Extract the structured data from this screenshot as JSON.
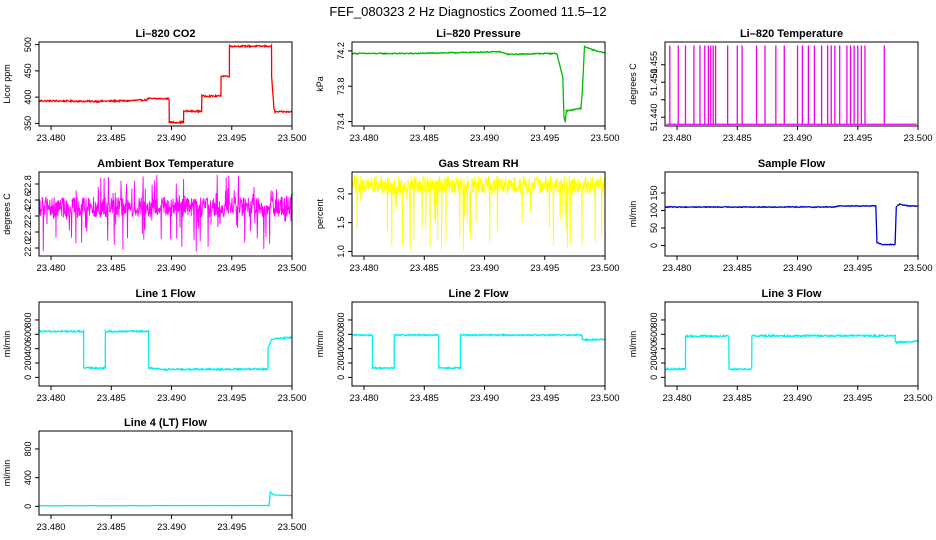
{
  "title": "FEF_080323  2 Hz Diagnostics Zoomed 11.5–12",
  "chart_data": [
    {
      "type": "line",
      "title": "Li–820 CO2",
      "xlabel": "",
      "ylabel": "Licor ppm",
      "color": "#ff0000",
      "xlim": [
        23.479,
        23.5
      ],
      "ylim": [
        345,
        505
      ],
      "xticks": [
        23.48,
        23.485,
        23.49,
        23.495,
        23.5
      ],
      "xtick_labels": [
        "23.480",
        "23.485",
        "23.490",
        "23.495",
        "23.500"
      ],
      "yticks": [
        350,
        400,
        450,
        500
      ],
      "ytick_labels": [
        "350",
        "400",
        "450",
        "500"
      ],
      "noise": 1.5,
      "x": [
        23.479,
        23.4835,
        23.4865,
        23.488,
        23.48801,
        23.4898,
        23.48981,
        23.491,
        23.49101,
        23.4925,
        23.49251,
        23.4941,
        23.49411,
        23.4948,
        23.49481,
        23.4983,
        23.49831,
        23.4985,
        23.4986,
        23.5
      ],
      "y": [
        393,
        392,
        393,
        395,
        397,
        397,
        352,
        352,
        373,
        373,
        402,
        402,
        440,
        440,
        497,
        497,
        440,
        378,
        372,
        372
      ]
    },
    {
      "type": "line",
      "title": "Li–820 Pressure",
      "xlabel": "",
      "ylabel": "kPa",
      "color": "#00bb00",
      "xlim": [
        23.479,
        23.5
      ],
      "ylim": [
        73.35,
        74.3
      ],
      "xticks": [
        23.48,
        23.485,
        23.49,
        23.495,
        23.5
      ],
      "xtick_labels": [
        "23.480",
        "23.485",
        "23.490",
        "23.495",
        "23.500"
      ],
      "yticks": [
        73.4,
        73.8,
        74.2
      ],
      "ytick_labels": [
        "73.4",
        "73.8",
        "74.2"
      ],
      "noise": 0.006,
      "x": [
        23.479,
        23.484,
        23.488,
        23.4912,
        23.492,
        23.495,
        23.496,
        23.4965,
        23.4966,
        23.4967,
        23.4968,
        23.4972,
        23.498,
        23.4981,
        23.4983,
        23.4988,
        23.4995,
        23.5
      ],
      "y": [
        74.17,
        74.17,
        74.18,
        74.19,
        74.16,
        74.17,
        74.17,
        73.9,
        73.45,
        73.4,
        73.52,
        73.53,
        73.55,
        73.7,
        74.25,
        74.22,
        74.19,
        74.18
      ]
    },
    {
      "type": "spikes",
      "title": "Li–820 Temperature",
      "xlabel": "",
      "ylabel": "degrees C",
      "color": "#ee00ee",
      "xlim": [
        23.479,
        23.5
      ],
      "ylim": [
        51.4375,
        51.4615
      ],
      "xticks": [
        23.48,
        23.485,
        23.49,
        23.495,
        23.5
      ],
      "xtick_labels": [
        "23.480",
        "23.485",
        "23.490",
        "23.495",
        "23.500"
      ],
      "yticks": [
        51.44,
        51.445,
        51.45,
        51.455
      ],
      "ytick_labels": [
        "51.440",
        "",
        "51.450",
        "51.455"
      ],
      "baseline": 51.438,
      "peak": 51.4605,
      "spikes": [
        23.4794,
        23.4801,
        23.4807,
        23.4814,
        23.4819,
        23.4823,
        23.4826,
        23.4828,
        23.483,
        23.4832,
        23.4842,
        23.485,
        23.4854,
        23.4866,
        23.4873,
        23.4882,
        23.4889,
        23.49,
        23.4904,
        23.4909,
        23.4914,
        23.492,
        23.4925,
        23.4928,
        23.4931,
        23.4935,
        23.4941,
        23.4944,
        23.4947,
        23.495,
        23.4953,
        23.4956,
        23.4972
      ]
    },
    {
      "type": "band",
      "title": "Ambient Box Temperature",
      "xlabel": "",
      "ylabel": "degrees C",
      "color": "#ff00ff",
      "xlim": [
        23.479,
        23.5
      ],
      "ylim": [
        21.9,
        22.95
      ],
      "xticks": [
        23.48,
        23.485,
        23.49,
        23.495,
        23.5
      ],
      "xtick_labels": [
        "23.480",
        "23.485",
        "23.490",
        "23.495",
        "23.500"
      ],
      "yticks": [
        22.0,
        22.2,
        22.4,
        22.6,
        22.8
      ],
      "ytick_labels": [
        "22.0",
        "22.2",
        "22.4",
        "22.6",
        "22.8"
      ],
      "x_start": 23.479,
      "x_end": 23.5,
      "center": 22.5,
      "band_low": 22.38,
      "band_high": 22.64,
      "spike_low": 21.95,
      "spike_high": 22.92
    },
    {
      "type": "band",
      "title": "Gas Stream RH",
      "xlabel": "",
      "ylabel": "percent",
      "color": "#ffff00",
      "xlim": [
        23.479,
        23.5
      ],
      "ylim": [
        0.92,
        2.38
      ],
      "xticks": [
        23.48,
        23.485,
        23.49,
        23.495,
        23.5
      ],
      "xtick_labels": [
        "23.480",
        "23.485",
        "23.490",
        "23.495",
        "23.500"
      ],
      "yticks": [
        1.0,
        1.5,
        2.0
      ],
      "ytick_labels": [
        "1.0",
        "1.5",
        "2.0"
      ],
      "x_start": 23.479,
      "x_end": 23.5,
      "center": 2.12,
      "band_low": 2.0,
      "band_high": 2.27,
      "spike_low": 0.98,
      "spike_high": 2.33
    },
    {
      "type": "line",
      "title": "Sample Flow",
      "xlabel": "",
      "ylabel": "ml/min",
      "color": "#0000cc",
      "xlim": [
        23.479,
        23.5
      ],
      "ylim": [
        -30,
        210
      ],
      "xticks": [
        23.48,
        23.485,
        23.49,
        23.495,
        23.5
      ],
      "xtick_labels": [
        "23.480",
        "23.485",
        "23.490",
        "23.495",
        "23.500"
      ],
      "yticks": [
        0,
        50,
        100,
        150
      ],
      "ytick_labels": [
        "0",
        "50",
        "100",
        "150"
      ],
      "noise": 1.2,
      "x": [
        23.479,
        23.493,
        23.4935,
        23.4965,
        23.4966,
        23.497,
        23.4981,
        23.4982,
        23.4985,
        23.4992,
        23.5
      ],
      "y": [
        110,
        110,
        113,
        113,
        8,
        3,
        3,
        112,
        118,
        113,
        113
      ]
    },
    {
      "type": "line",
      "title": "Line 1 Flow",
      "xlabel": "",
      "ylabel": "ml/min",
      "color": "#00eeee",
      "xlim": [
        23.479,
        23.5
      ],
      "ylim": [
        -120,
        1050
      ],
      "xticks": [
        23.48,
        23.485,
        23.49,
        23.495,
        23.5
      ],
      "xtick_labels": [
        "23.480",
        "23.485",
        "23.490",
        "23.495",
        "23.500"
      ],
      "yticks": [
        0,
        200,
        400,
        600,
        800
      ],
      "ytick_labels": [
        "0",
        "200",
        "400",
        "600",
        "800"
      ],
      "noise": 12,
      "x": [
        23.479,
        23.4827,
        23.48271,
        23.4845,
        23.48451,
        23.4881,
        23.48811,
        23.4895,
        23.498,
        23.49801,
        23.4983,
        23.5
      ],
      "y": [
        640,
        640,
        130,
        130,
        640,
        640,
        130,
        110,
        115,
        400,
        530,
        560
      ]
    },
    {
      "type": "line",
      "title": "Line 2 Flow",
      "xlabel": "",
      "ylabel": "ml/min",
      "color": "#00eeee",
      "xlim": [
        23.479,
        23.5
      ],
      "ylim": [
        -120,
        1050
      ],
      "xticks": [
        23.48,
        23.485,
        23.49,
        23.495,
        23.5
      ],
      "xtick_labels": [
        "23.480",
        "23.485",
        "23.490",
        "23.495",
        "23.500"
      ],
      "yticks": [
        0,
        200,
        400,
        600,
        800
      ],
      "ytick_labels": [
        "0",
        "200",
        "400",
        "600",
        "800"
      ],
      "noise": 10,
      "x": [
        23.479,
        23.4807,
        23.48071,
        23.4825,
        23.48251,
        23.4862,
        23.48621,
        23.488,
        23.48801,
        23.4981,
        23.49811,
        23.5
      ],
      "y": [
        590,
        590,
        130,
        130,
        590,
        590,
        130,
        130,
        590,
        590,
        520,
        530
      ]
    },
    {
      "type": "line",
      "title": "Line 3 Flow",
      "xlabel": "",
      "ylabel": "ml/min",
      "color": "#00eeee",
      "xlim": [
        23.479,
        23.5
      ],
      "ylim": [
        -120,
        1050
      ],
      "xticks": [
        23.48,
        23.485,
        23.49,
        23.495,
        23.5
      ],
      "xtick_labels": [
        "23.480",
        "23.485",
        "23.490",
        "23.495",
        "23.500"
      ],
      "yticks": [
        0,
        200,
        400,
        600,
        800
      ],
      "ytick_labels": [
        "0",
        "200",
        "400",
        "600",
        "800"
      ],
      "noise": 12,
      "x": [
        23.479,
        23.4807,
        23.48071,
        23.4843,
        23.48431,
        23.4862,
        23.48621,
        23.4981,
        23.49811,
        23.5
      ],
      "y": [
        115,
        115,
        575,
        575,
        115,
        115,
        580,
        580,
        490,
        500
      ]
    },
    {
      "type": "line",
      "title": "Line 4 (LT) Flow",
      "xlabel": "",
      "ylabel": "ml/min",
      "color": "#00eeee",
      "xlim": [
        23.479,
        23.5
      ],
      "ylim": [
        -120,
        1050
      ],
      "xticks": [
        23.48,
        23.485,
        23.49,
        23.495,
        23.5
      ],
      "xtick_labels": [
        "23.480",
        "23.485",
        "23.490",
        "23.495",
        "23.500"
      ],
      "yticks": [
        0,
        400,
        800
      ],
      "ytick_labels": [
        "0",
        "400",
        "800"
      ],
      "noise": 2,
      "x": [
        23.479,
        23.4981,
        23.4982,
        23.4985,
        23.5
      ],
      "y": [
        10,
        12,
        200,
        160,
        150
      ]
    }
  ]
}
